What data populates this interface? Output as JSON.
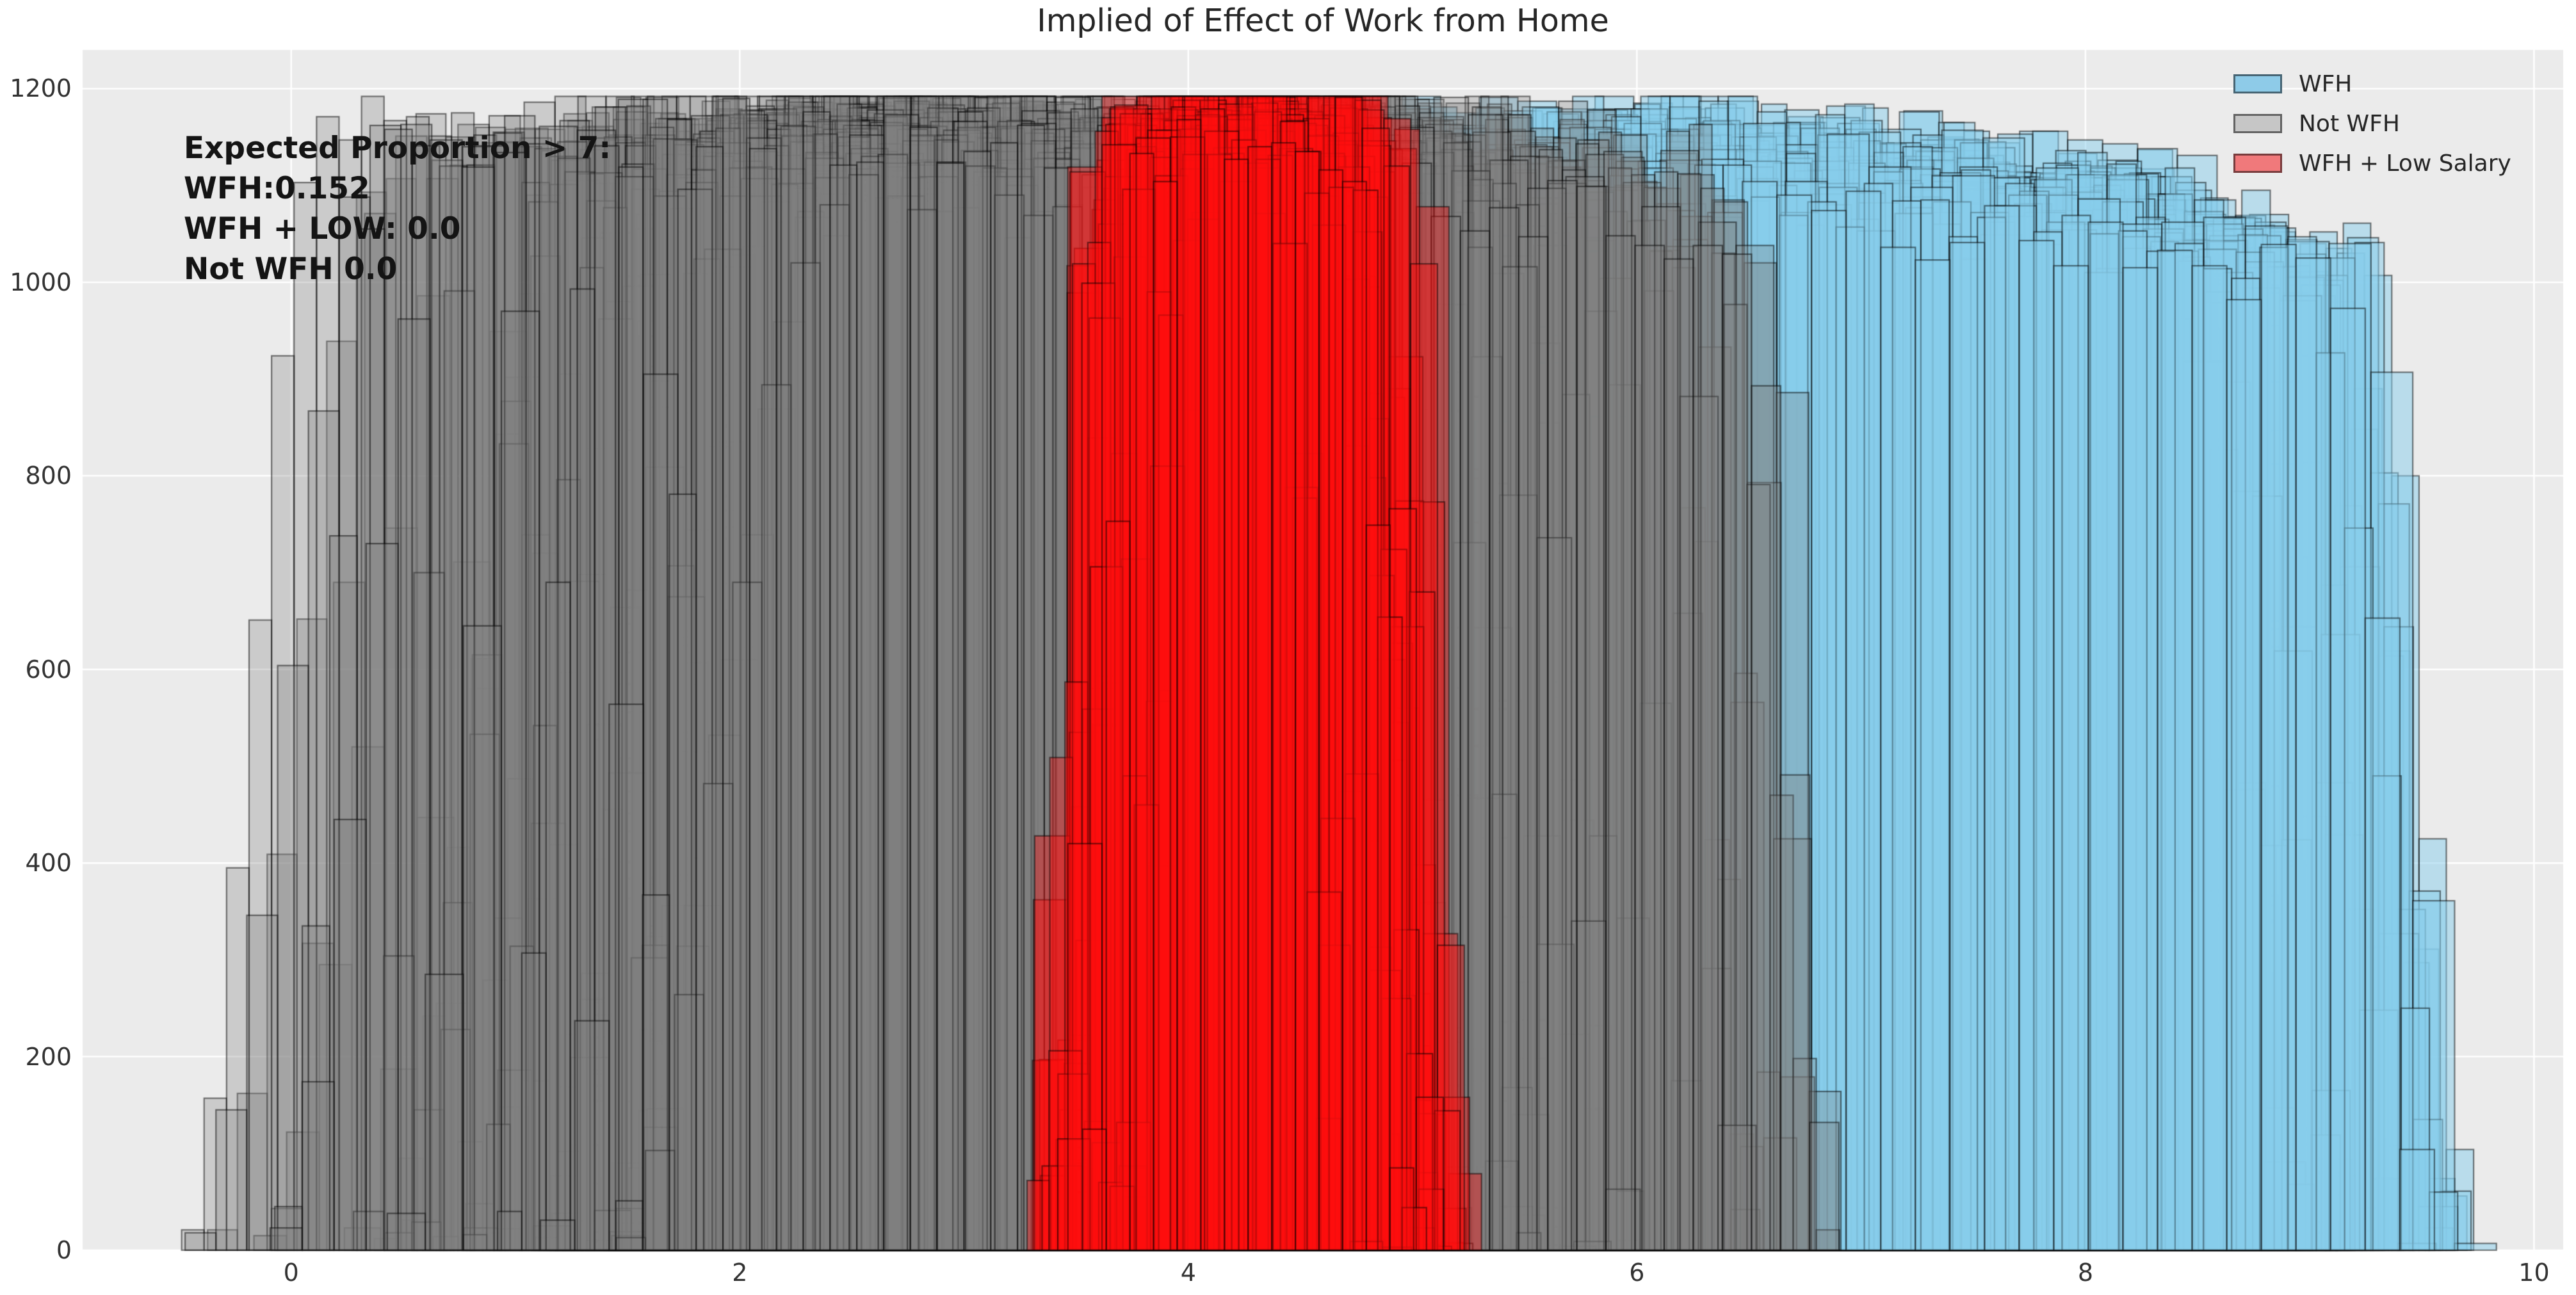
{
  "title": "Implied of Effect of Work from Home",
  "annotation": {
    "lines": [
      "Expected Proportion > 7:",
      "WFH:0.152",
      "WFH + LOW: 0.0",
      "Not WFH 0.0"
    ]
  },
  "legend": {
    "position": "upper right",
    "items": [
      {
        "label": "WFH",
        "swatch_color": "#8ECBE8"
      },
      {
        "label": "Not WFH",
        "swatch_color": "#C6C6C6"
      },
      {
        "label": "WFH + Low Salary",
        "swatch_color": "#F0797B"
      }
    ]
  },
  "style": {
    "figure_background": "#FFFFFF",
    "axes_background": "#EBEBEB",
    "grid_color": "#FFFFFF",
    "title_color": "#262626",
    "tick_label_color": "#333333",
    "annotation_color": "#141414",
    "bar_edge_color": "rgba(0,0,0,0.5)"
  },
  "chart_data": {
    "type": "histogram-ensemble",
    "description": "Many overlapping translucent posterior-draw histograms in three groups",
    "xlim": [
      -0.93,
      10.13
    ],
    "ylim": [
      0,
      1240
    ],
    "x_ticks": [
      {
        "value": 0,
        "label": "0"
      },
      {
        "value": 2,
        "label": "2"
      },
      {
        "value": 4,
        "label": "4"
      },
      {
        "value": 6,
        "label": "6"
      },
      {
        "value": 8,
        "label": "8"
      },
      {
        "value": 10,
        "label": "10"
      }
    ],
    "y_ticks": [
      {
        "value": 0,
        "label": "0"
      },
      {
        "value": 200,
        "label": "200"
      },
      {
        "value": 400,
        "label": "400"
      },
      {
        "value": 600,
        "label": "600"
      },
      {
        "value": 800,
        "label": "800"
      },
      {
        "value": 1000,
        "label": "1000"
      },
      {
        "value": 1200,
        "label": "1200"
      }
    ],
    "grid": true,
    "groups": [
      {
        "name": "WFH",
        "face": "rgba(135,206,235,0.5)",
        "edge": "rgba(0,0,0,0.5)",
        "n_draws": 62,
        "seed": 202,
        "envelope": {
          "support": [
            3.1,
            9.8
          ],
          "dense": [
            5.2,
            9.0
          ],
          "peak_count": 1130
        },
        "lo": {
          "min": 3.15,
          "max": 5.3,
          "pow": 2.8
        },
        "hi": {
          "min": 8.7,
          "max": 9.78,
          "pow": 1.6
        },
        "ramp_lo": [
          0.3,
          0.9
        ],
        "ramp_hi": [
          0.3,
          0.8
        ],
        "plateau": {
          "mean": 1120,
          "sd": 35,
          "min": 980,
          "max": 1165
        },
        "binw": [
          0.11,
          0.19
        ],
        "noise": 0.035,
        "taper": {
          "start": 6.5,
          "end": 9.8,
          "amount": 0.1
        }
      },
      {
        "name": "Not WFH",
        "face": "rgba(128,128,128,0.3)",
        "edge": "rgba(0,0,0,0.5)",
        "n_draws": 70,
        "seed": 101,
        "envelope": {
          "support": [
            -0.5,
            7.0
          ],
          "dense": [
            1.1,
            5.3
          ],
          "peak_count": 1180
        },
        "lo": {
          "min": -0.55,
          "max": 1.45,
          "pow": 2.6
        },
        "hi": {
          "min": 5.15,
          "max": 7.0,
          "pow": 3.0
        },
        "ramp_lo": [
          0.45,
          1.1
        ],
        "ramp_hi": [
          0.25,
          0.7
        ],
        "plateau": {
          "mean": 1140,
          "sd": 30,
          "min": 1020,
          "max": 1185
        },
        "binw": [
          0.1,
          0.17
        ],
        "noise": 0.035,
        "taper": {
          "start": 5.0,
          "end": 7.0,
          "amount": 0.06
        }
      },
      {
        "name": "WFH + Low Salary",
        "face": "rgba(255,15,15,0.4)",
        "edge": "rgba(0,0,0,0.5)",
        "n_draws": 55,
        "seed": 303,
        "envelope": {
          "support": [
            3.3,
            5.3
          ],
          "dense": [
            3.6,
            4.9
          ],
          "peak_count": 1185
        },
        "lo": {
          "min": 3.28,
          "max": 3.75,
          "pow": 1.4
        },
        "hi": {
          "min": 4.65,
          "max": 5.28,
          "pow": 1.4
        },
        "ramp_lo": [
          0.15,
          0.45
        ],
        "ramp_hi": [
          0.2,
          0.55
        ],
        "plateau": {
          "mean": 1150,
          "sd": 25,
          "min": 1080,
          "max": 1188
        },
        "binw": [
          0.1,
          0.16
        ],
        "noise": 0.035,
        "taper": null
      }
    ]
  }
}
